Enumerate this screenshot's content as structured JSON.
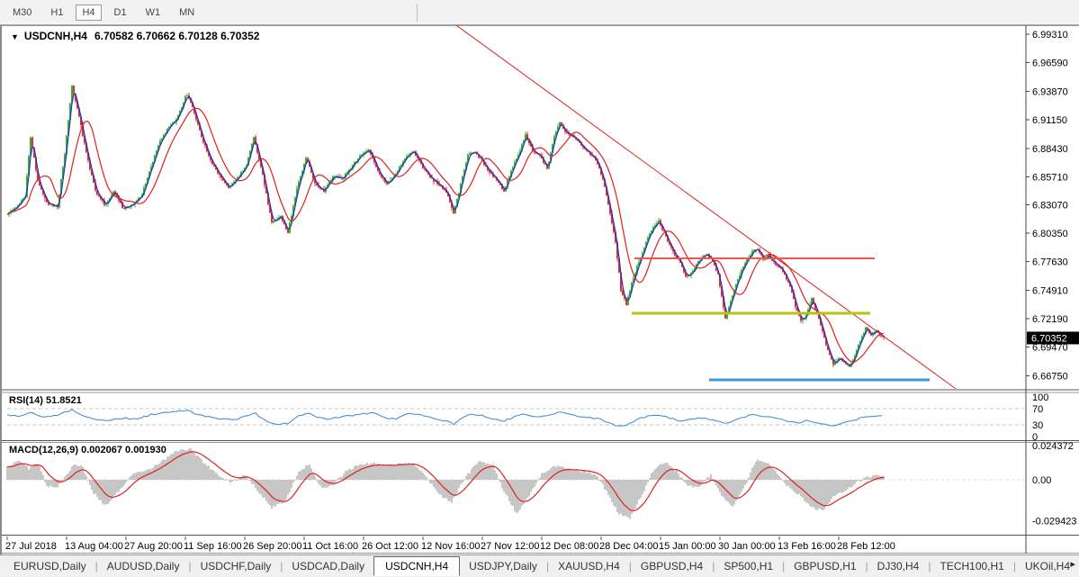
{
  "toolbar": {
    "periods": [
      {
        "label": "M30",
        "active": false
      },
      {
        "label": "H1",
        "active": false
      },
      {
        "label": "H4",
        "active": true
      },
      {
        "label": "D1",
        "active": false
      },
      {
        "label": "W1",
        "active": false
      },
      {
        "label": "MN",
        "active": false
      }
    ]
  },
  "chart": {
    "dropdown_icon": "▼",
    "title": "USDCNH,H4",
    "ohlc": "6.70582 6.70662 6.70128 6.70352"
  },
  "indicators": {
    "rsi_label": "RSI(14) 51.8521",
    "macd_label": "MACD(12,26,9) 0.002067 0.001930"
  },
  "bottom_tabs": {
    "items": [
      {
        "label": "EURUSD,Daily",
        "active": false
      },
      {
        "label": "AUDUSD,Daily",
        "active": false
      },
      {
        "label": "USDCHF,Daily",
        "active": false
      },
      {
        "label": "USDCAD,Daily",
        "active": false
      },
      {
        "label": "USDCNH,H4",
        "active": true
      },
      {
        "label": "USDJPY,Daily",
        "active": false
      },
      {
        "label": "XAUUSD,H4",
        "active": false
      },
      {
        "label": "GBPUSD,H4",
        "active": false
      },
      {
        "label": "SP500,H1",
        "active": false
      },
      {
        "label": "GBPUSD,H1",
        "active": false
      },
      {
        "label": "DJ30,H4",
        "active": false
      },
      {
        "label": "TECH100,H1",
        "active": false
      },
      {
        "label": "UKOil,H4",
        "active": false
      }
    ],
    "scroll_arrow": "▸"
  },
  "chart_data": {
    "type": "candlestick",
    "symbol": "USDCNH",
    "timeframe": "H4",
    "open": 6.70582,
    "high": 6.70662,
    "low": 6.70128,
    "close": 6.70352,
    "current_price": "6.70352",
    "price_axis_labels": [
      "6.99310",
      "6.96590",
      "6.93870",
      "6.91150",
      "6.88430",
      "6.85710",
      "6.83070",
      "6.80350",
      "6.77630",
      "6.74910",
      "6.72190",
      "6.69470",
      "6.66750"
    ],
    "price_axis_values": [
      6.9931,
      6.9659,
      6.9387,
      6.9115,
      6.8843,
      6.8571,
      6.8307,
      6.8035,
      6.7763,
      6.7491,
      6.7219,
      6.6947,
      6.6675
    ],
    "y_range": [
      6.655,
      7.0
    ],
    "x_axis_labels": [
      "27 Jul 2018",
      "13 Aug 04:00",
      "27 Aug 20:00",
      "11 Sep 16:00",
      "26 Sep 20:00",
      "11 Oct 16:00",
      "26 Oct 12:00",
      "12 Nov 16:00",
      "27 Nov 12:00",
      "12 Dec 08:00",
      "28 Dec 04:00",
      "15 Jan 00:00",
      "30 Jan 00:00",
      "13 Feb 16:00",
      "28 Feb 12:00"
    ],
    "price_path": [
      [
        6,
        6.8224
      ],
      [
        16,
        6.8284
      ],
      [
        26,
        6.8387
      ],
      [
        32,
        6.8953
      ],
      [
        40,
        6.8541
      ],
      [
        50,
        6.8327
      ],
      [
        62,
        6.8284
      ],
      [
        70,
        6.8799
      ],
      [
        78,
        6.9442
      ],
      [
        86,
        6.9142
      ],
      [
        95,
        6.8756
      ],
      [
        105,
        6.8413
      ],
      [
        115,
        6.8301
      ],
      [
        125,
        6.8438
      ],
      [
        135,
        6.8267
      ],
      [
        145,
        6.8301
      ],
      [
        155,
        6.8387
      ],
      [
        165,
        6.8644
      ],
      [
        175,
        6.8902
      ],
      [
        185,
        6.9039
      ],
      [
        195,
        6.9125
      ],
      [
        205,
        6.9357
      ],
      [
        212,
        6.9245
      ],
      [
        222,
        6.8953
      ],
      [
        232,
        6.873
      ],
      [
        242,
        6.8584
      ],
      [
        252,
        6.8473
      ],
      [
        262,
        6.8558
      ],
      [
        272,
        6.8687
      ],
      [
        280,
        6.8953
      ],
      [
        290,
        6.8584
      ],
      [
        300,
        6.8138
      ],
      [
        310,
        6.8198
      ],
      [
        318,
        6.8043
      ],
      [
        328,
        6.8455
      ],
      [
        338,
        6.8756
      ],
      [
        348,
        6.8515
      ],
      [
        358,
        6.843
      ],
      [
        368,
        6.8575
      ],
      [
        378,
        6.855
      ],
      [
        388,
        6.8661
      ],
      [
        398,
        6.8764
      ],
      [
        408,
        6.8833
      ],
      [
        418,
        6.8627
      ],
      [
        428,
        6.8498
      ],
      [
        438,
        6.8601
      ],
      [
        448,
        6.8756
      ],
      [
        458,
        6.8816
      ],
      [
        468,
        6.8653
      ],
      [
        478,
        6.855
      ],
      [
        488,
        6.8481
      ],
      [
        495,
        6.8413
      ],
      [
        502,
        6.8215
      ],
      [
        510,
        6.8498
      ],
      [
        518,
        6.8781
      ],
      [
        526,
        6.8816
      ],
      [
        534,
        6.8713
      ],
      [
        542,
        6.861
      ],
      [
        550,
        6.8541
      ],
      [
        558,
        6.843
      ],
      [
        566,
        6.8627
      ],
      [
        574,
        6.8781
      ],
      [
        582,
        6.897
      ],
      [
        590,
        6.8816
      ],
      [
        598,
        6.8781
      ],
      [
        606,
        6.8644
      ],
      [
        614,
        6.8953
      ],
      [
        620,
        6.909
      ],
      [
        628,
        6.8987
      ],
      [
        636,
        6.8953
      ],
      [
        644,
        6.8867
      ],
      [
        652,
        6.8799
      ],
      [
        660,
        6.873
      ],
      [
        668,
        6.8558
      ],
      [
        675,
        6.8267
      ],
      [
        682,
        6.7958
      ],
      [
        688,
        6.7494
      ],
      [
        694,
        6.7357
      ],
      [
        700,
        6.7554
      ],
      [
        706,
        6.7718
      ],
      [
        712,
        6.7855
      ],
      [
        718,
        6.8001
      ],
      [
        724,
        6.8095
      ],
      [
        730,
        6.8147
      ],
      [
        736,
        6.8043
      ],
      [
        742,
        6.7923
      ],
      [
        748,
        6.7829
      ],
      [
        754,
        6.7752
      ],
      [
        760,
        6.7614
      ],
      [
        766,
        6.7657
      ],
      [
        772,
        6.7734
      ],
      [
        778,
        6.7803
      ],
      [
        784,
        6.7837
      ],
      [
        790,
        6.776
      ],
      [
        796,
        6.764
      ],
      [
        800,
        6.7425
      ],
      [
        804,
        6.7211
      ],
      [
        810,
        6.7382
      ],
      [
        816,
        6.7554
      ],
      [
        822,
        6.7683
      ],
      [
        828,
        6.7786
      ],
      [
        834,
        6.7855
      ],
      [
        840,
        6.7889
      ],
      [
        846,
        6.7786
      ],
      [
        852,
        6.782
      ],
      [
        858,
        6.7752
      ],
      [
        864,
        6.7709
      ],
      [
        870,
        6.764
      ],
      [
        876,
        6.7529
      ],
      [
        882,
        6.734
      ],
      [
        888,
        6.7202
      ],
      [
        894,
        6.7254
      ],
      [
        900,
        6.7408
      ],
      [
        906,
        6.7271
      ],
      [
        912,
        6.7099
      ],
      [
        918,
        6.6911
      ],
      [
        924,
        6.6782
      ],
      [
        930,
        6.6842
      ],
      [
        936,
        6.6808
      ],
      [
        942,
        6.6756
      ],
      [
        948,
        6.6868
      ],
      [
        954,
        6.7014
      ],
      [
        960,
        6.7125
      ],
      [
        966,
        6.7065
      ],
      [
        972,
        6.7099
      ],
      [
        980,
        6.7035
      ]
    ],
    "overlays": {
      "hlines": [
        {
          "price": 6.7795,
          "x1": 703,
          "x2": 970,
          "color": "#f25454",
          "width": 2
        },
        {
          "price": 6.7271,
          "x1": 700,
          "x2": 965,
          "color": "#b5c412",
          "width": 3
        },
        {
          "price": 6.6636,
          "x1": 786,
          "x2": 1031,
          "color": "#3d9ad9",
          "width": 3
        }
      ],
      "trendline": {
        "x1": 505,
        "p1": 7.0017,
        "x2": 1060,
        "p2": 6.6551,
        "color": "#e02020"
      }
    },
    "rsi": {
      "value": 51.8521,
      "axis_labels": [
        "100",
        "70",
        "30",
        "0"
      ],
      "axis_values": [
        100,
        70,
        30,
        0
      ],
      "dashed_levels": [
        70,
        30
      ],
      "path": [
        [
          6,
          55
        ],
        [
          20,
          50
        ],
        [
          32,
          63
        ],
        [
          45,
          48
        ],
        [
          60,
          52
        ],
        [
          78,
          68
        ],
        [
          90,
          54
        ],
        [
          105,
          44
        ],
        [
          118,
          40
        ],
        [
          135,
          47
        ],
        [
          150,
          44
        ],
        [
          165,
          55
        ],
        [
          180,
          60
        ],
        [
          195,
          63
        ],
        [
          205,
          66
        ],
        [
          218,
          56
        ],
        [
          232,
          48
        ],
        [
          245,
          44
        ],
        [
          258,
          42
        ],
        [
          272,
          52
        ],
        [
          282,
          58
        ],
        [
          295,
          36
        ],
        [
          305,
          30
        ],
        [
          318,
          34
        ],
        [
          330,
          52
        ],
        [
          340,
          60
        ],
        [
          352,
          48
        ],
        [
          365,
          44
        ],
        [
          378,
          50
        ],
        [
          390,
          54
        ],
        [
          402,
          58
        ],
        [
          412,
          60
        ],
        [
          425,
          48
        ],
        [
          438,
          44
        ],
        [
          450,
          56
        ],
        [
          462,
          58
        ],
        [
          475,
          48
        ],
        [
          488,
          42
        ],
        [
          495,
          38
        ],
        [
          502,
          32
        ],
        [
          512,
          48
        ],
        [
          522,
          58
        ],
        [
          535,
          52
        ],
        [
          545,
          46
        ],
        [
          558,
          40
        ],
        [
          568,
          48
        ],
        [
          578,
          58
        ],
        [
          590,
          52
        ],
        [
          600,
          50
        ],
        [
          612,
          58
        ],
        [
          622,
          62
        ],
        [
          635,
          54
        ],
        [
          645,
          50
        ],
        [
          655,
          48
        ],
        [
          665,
          44
        ],
        [
          675,
          34
        ],
        [
          685,
          26
        ],
        [
          695,
          30
        ],
        [
          705,
          42
        ],
        [
          715,
          50
        ],
        [
          725,
          56
        ],
        [
          735,
          52
        ],
        [
          745,
          45
        ],
        [
          755,
          40
        ],
        [
          765,
          42
        ],
        [
          775,
          48
        ],
        [
          785,
          44
        ],
        [
          795,
          38
        ],
        [
          805,
          32
        ],
        [
          815,
          42
        ],
        [
          825,
          50
        ],
        [
          835,
          56
        ],
        [
          845,
          52
        ],
        [
          855,
          48
        ],
        [
          865,
          44
        ],
        [
          875,
          38
        ],
        [
          885,
          34
        ],
        [
          895,
          42
        ],
        [
          905,
          36
        ],
        [
          915,
          30
        ],
        [
          925,
          28
        ],
        [
          935,
          34
        ],
        [
          945,
          40
        ],
        [
          955,
          48
        ],
        [
          965,
          52
        ],
        [
          972,
          50
        ],
        [
          980,
          51.85
        ]
      ]
    },
    "macd": {
      "main_value": 0.002067,
      "signal_value": 0.00193,
      "axis_labels": [
        "0.024372",
        "0.00",
        "-0.029423"
      ],
      "axis_values": [
        0.024372,
        0,
        -0.029423
      ],
      "path": [
        [
          6,
          0.009
        ],
        [
          18,
          0.014
        ],
        [
          30,
          0.008
        ],
        [
          40,
          0.012
        ],
        [
          50,
          -0.004
        ],
        [
          60,
          -0.006
        ],
        [
          70,
          0.002
        ],
        [
          80,
          0.011
        ],
        [
          90,
          0.009
        ],
        [
          100,
          -0.008
        ],
        [
          115,
          -0.019
        ],
        [
          130,
          -0.008
        ],
        [
          145,
          0.004
        ],
        [
          160,
          0.006
        ],
        [
          175,
          0.012
        ],
        [
          195,
          0.021
        ],
        [
          210,
          0.022
        ],
        [
          225,
          0.012
        ],
        [
          240,
          0.004
        ],
        [
          255,
          -0.002
        ],
        [
          270,
          0.004
        ],
        [
          285,
          -0.008
        ],
        [
          300,
          -0.02
        ],
        [
          315,
          -0.015
        ],
        [
          330,
          0.006
        ],
        [
          342,
          0.011
        ],
        [
          355,
          -0.006
        ],
        [
          368,
          -0.004
        ],
        [
          382,
          0.006
        ],
        [
          395,
          0.01
        ],
        [
          410,
          0.012
        ],
        [
          425,
          0.01
        ],
        [
          440,
          0.011
        ],
        [
          455,
          0.012
        ],
        [
          470,
          0.004
        ],
        [
          485,
          -0.01
        ],
        [
          500,
          -0.016
        ],
        [
          515,
          0.002
        ],
        [
          530,
          0.013
        ],
        [
          545,
          0.011
        ],
        [
          558,
          -0.008
        ],
        [
          572,
          -0.024
        ],
        [
          585,
          -0.012
        ],
        [
          600,
          0.004
        ],
        [
          615,
          0.01
        ],
        [
          630,
          0.008
        ],
        [
          645,
          0.006
        ],
        [
          660,
          0.004
        ],
        [
          672,
          -0.008
        ],
        [
          685,
          -0.024
        ],
        [
          698,
          -0.028
        ],
        [
          712,
          -0.01
        ],
        [
          725,
          0.008
        ],
        [
          738,
          0.013
        ],
        [
          750,
          0.006
        ],
        [
          762,
          -0.004
        ],
        [
          775,
          -0.006
        ],
        [
          788,
          0.004
        ],
        [
          800,
          -0.012
        ],
        [
          812,
          -0.02
        ],
        [
          825,
          -0.006
        ],
        [
          838,
          0.014
        ],
        [
          850,
          0.012
        ],
        [
          862,
          0.004
        ],
        [
          875,
          -0.006
        ],
        [
          888,
          -0.012
        ],
        [
          900,
          -0.02
        ],
        [
          912,
          -0.022
        ],
        [
          925,
          -0.012
        ],
        [
          938,
          -0.008
        ],
        [
          950,
          -0.002
        ],
        [
          962,
          0.002
        ],
        [
          972,
          0.003
        ],
        [
          980,
          0.002
        ]
      ]
    },
    "colors": {
      "up": "#2eb82e",
      "down": "#e62e2e",
      "ma_fast": "#2230c0",
      "ma_slow": "#e02020",
      "rsi_line": "#4a90d2",
      "macd_hist": "#c6c6c6",
      "macd_signal": "#e02020",
      "grid_dash": "#c4c4c4",
      "axis_text": "#000000",
      "price_box_bg": "#000000",
      "price_box_text": "#ffffff"
    }
  }
}
